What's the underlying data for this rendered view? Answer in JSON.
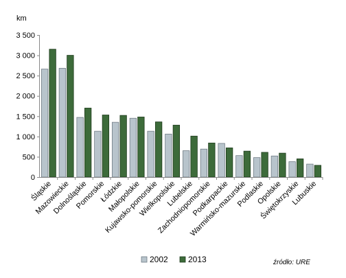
{
  "chart_data": {
    "type": "bar",
    "ylabel": "km",
    "ylim": [
      0,
      3500
    ],
    "yticks": [
      "0",
      "500",
      "1 000",
      "1 500",
      "2 000",
      "2 500",
      "3 000",
      "3 500"
    ],
    "categories": [
      "Śląskie",
      "Mazowieckie",
      "Dolnośląskie",
      "Pomorskie",
      "Łódzkie",
      "Małopolskie",
      "Kujawsko-pomorskie",
      "Wielkopolskie",
      "Lubelskie",
      "Zachodniopomorskie",
      "Podkarpackie",
      "Warmińsko-mazurskie",
      "Podlaskie",
      "Opolskie",
      "Świętokrzyskie",
      "Lubuskie"
    ],
    "series": [
      {
        "name": "2002",
        "color": "#b8c4cc",
        "values": [
          2660,
          2680,
          1470,
          1130,
          1350,
          1450,
          1130,
          1060,
          650,
          690,
          830,
          530,
          480,
          520,
          380,
          320
        ]
      },
      {
        "name": "2013",
        "color": "#3d6b3a",
        "values": [
          3150,
          3000,
          1700,
          1530,
          1520,
          1480,
          1360,
          1280,
          1010,
          840,
          720,
          640,
          610,
          590,
          450,
          290
        ]
      }
    ],
    "legend_position": "bottom",
    "grid": false,
    "source": "źródło: URE"
  }
}
